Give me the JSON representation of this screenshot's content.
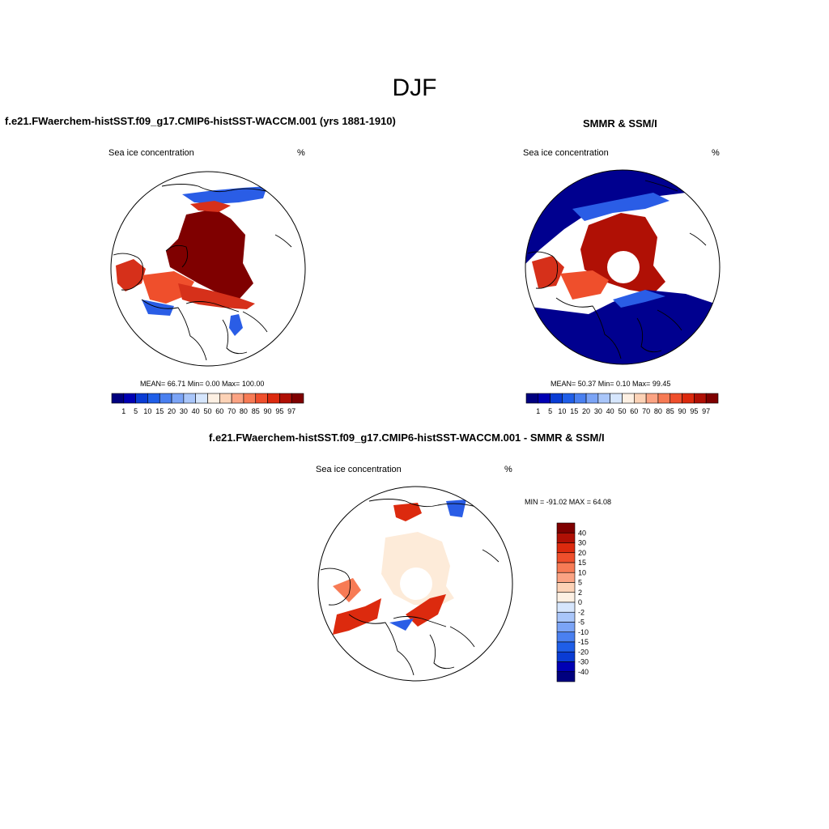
{
  "figure": {
    "title": "DJF"
  },
  "panels": {
    "model": {
      "title": "f.e21.FWaerchem-histSST.f09_g17.CMIP6-histSST-WACCM.001 (yrs 1881-1910)",
      "variable": "Sea ice concentration",
      "units": "%",
      "stats": "MEAN=  66.71  Min=   0.00  Max= 100.00"
    },
    "obs": {
      "title": "SMMR & SSM/I",
      "variable": "Sea ice concentration",
      "units": "%",
      "stats": "MEAN=  50.37  Min=   0.10  Max=  99.45"
    },
    "diff": {
      "title": "f.e21.FWaerchem-histSST.f09_g17.CMIP6-histSST-WACCM.001 - SMMR & SSM/I",
      "variable": "Sea ice concentration",
      "units": "%",
      "stats": "MIN = -91.02 MAX =  64.08"
    }
  },
  "colorbars": {
    "concentration": {
      "ticks": [
        "1",
        "5",
        "10",
        "15",
        "20",
        "30",
        "40",
        "50",
        "60",
        "70",
        "80",
        "85",
        "90",
        "95",
        "97"
      ],
      "colors": [
        "#00007f",
        "#0000b4",
        "#0a3cd4",
        "#1f5ee8",
        "#4a80f0",
        "#7ba4f6",
        "#a9c6fa",
        "#d6e6fd",
        "#fdf0e3",
        "#fcd2b6",
        "#fba383",
        "#f77b55",
        "#ef4f2c",
        "#dc2a0e",
        "#b01005",
        "#7f0000"
      ]
    },
    "difference": {
      "ticks": [
        "40",
        "30",
        "20",
        "15",
        "10",
        "5",
        "2",
        "0",
        "-2",
        "-5",
        "-10",
        "-15",
        "-20",
        "-30",
        "-40"
      ],
      "colors": [
        "#7f0000",
        "#b01005",
        "#dc2a0e",
        "#ef4f2c",
        "#f77b55",
        "#fba383",
        "#fcd2b6",
        "#fdf0e3",
        "#d6e6fd",
        "#a9c6fa",
        "#7ba4f6",
        "#4a80f0",
        "#1f5ee8",
        "#0a3cd4",
        "#0000b4",
        "#00007f"
      ]
    }
  },
  "map_colors": {
    "ice_high": "#7f0000",
    "ice_mid": "#d6301a",
    "ice_low": "#f77b55",
    "open_blue": "#00008f",
    "edge_blue": "#2a5de6",
    "diff_pale": "#fdebd9",
    "coast": "#000000"
  }
}
